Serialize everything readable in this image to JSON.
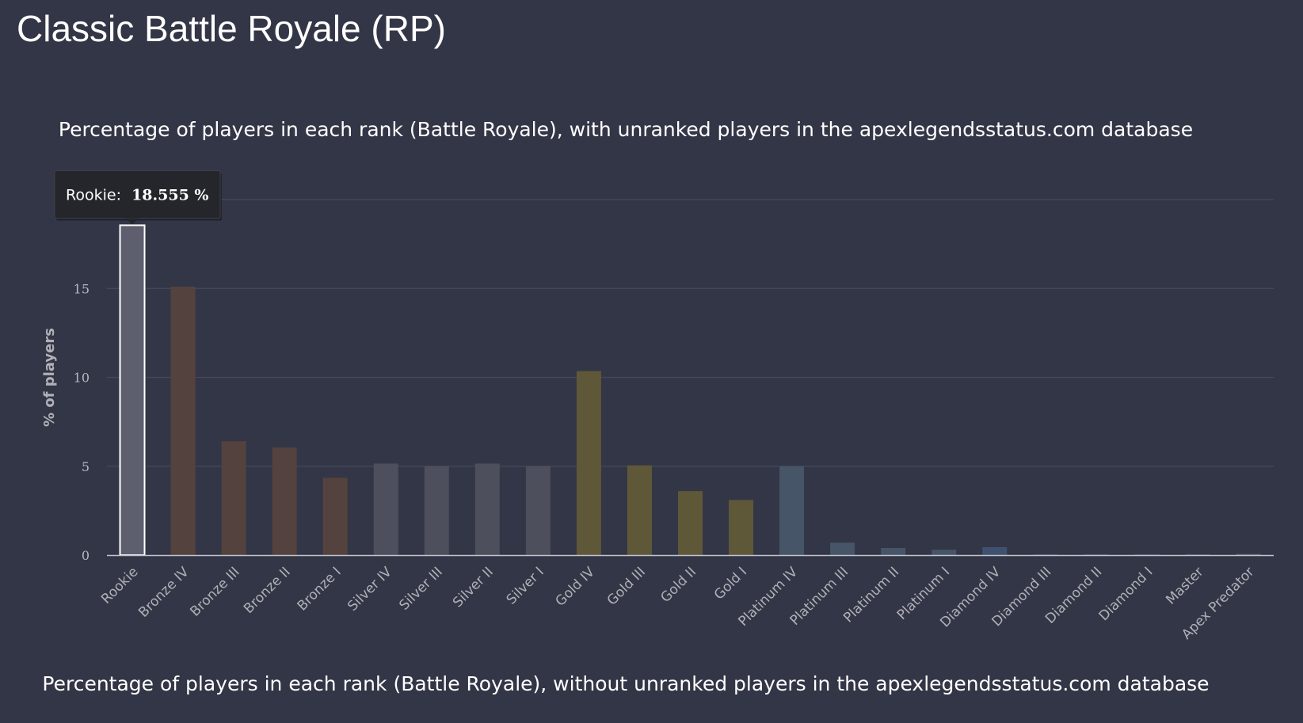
{
  "page": {
    "title": "Classic Battle Royale (RP)"
  },
  "charts": {
    "with_unranked_title": "Percentage of players in each rank (Battle Royale), with unranked players in the apexlegendsstatus.com database",
    "without_unranked_title": "Percentage of players in each rank (Battle Royale), without unranked players in the apexlegendsstatus.com database"
  },
  "tooltip": {
    "label": "Rookie:",
    "value_text": "18.555 %"
  },
  "colors": {
    "background": "#333646",
    "rookie": "#5d5f6e",
    "bronze": "#54423f",
    "silver": "#4d4f5c",
    "gold": "#5e5839",
    "platinum": "#465668",
    "diamond": "#3e5270",
    "master": "#53516a",
    "predator": "#5d5f6e",
    "grid": "#474a5a",
    "axis": "#c4c4cc",
    "highlight_border": "#ffffff"
  },
  "chart_data": [
    {
      "type": "bar",
      "title": "Percentage of players in each rank (Battle Royale), with unranked players in the apexlegendsstatus.com database",
      "xlabel": "",
      "ylabel": "% of players",
      "ylim": [
        0,
        20
      ],
      "yticks": [
        0,
        5,
        10,
        15,
        20
      ],
      "grid": true,
      "legend": "none",
      "categories": [
        "Rookie",
        "Bronze IV",
        "Bronze III",
        "Bronze II",
        "Bronze I",
        "Silver IV",
        "Silver III",
        "Silver II",
        "Silver I",
        "Gold IV",
        "Gold III",
        "Gold II",
        "Gold I",
        "Platinum IV",
        "Platinum III",
        "Platinum II",
        "Platinum I",
        "Diamond IV",
        "Diamond III",
        "Diamond II",
        "Diamond I",
        "Master",
        "Apex Predator"
      ],
      "values": [
        18.555,
        15.1,
        6.4,
        6.05,
        4.35,
        5.15,
        5.0,
        5.15,
        5.0,
        10.35,
        5.05,
        3.6,
        3.1,
        5.0,
        0.7,
        0.4,
        0.3,
        0.45,
        0.02,
        0.01,
        0.01,
        0.01,
        0.06
      ],
      "bar_colors": [
        "rookie",
        "bronze",
        "bronze",
        "bronze",
        "bronze",
        "silver",
        "silver",
        "silver",
        "silver",
        "gold",
        "gold",
        "gold",
        "gold",
        "platinum",
        "platinum",
        "platinum",
        "platinum",
        "diamond",
        "diamond",
        "diamond",
        "diamond",
        "master",
        "predator"
      ],
      "highlighted": "Rookie"
    }
  ]
}
